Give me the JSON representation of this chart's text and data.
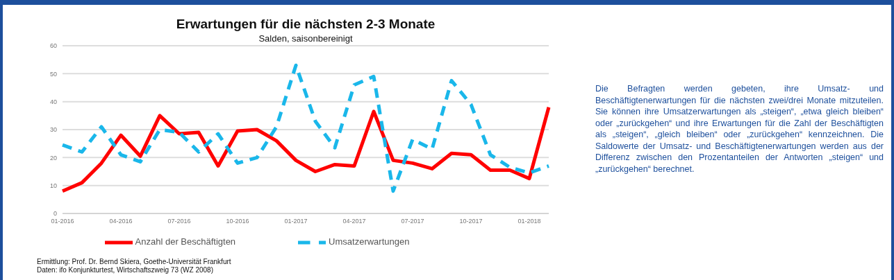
{
  "chart_data": {
    "type": "line",
    "title": "Erwartungen für die nächsten 2-3 Monate",
    "subtitle": "Salden, saisonbereinigt",
    "categories": [
      "01-2016",
      null,
      null,
      "04-2016",
      null,
      null,
      "07-2016",
      null,
      null,
      "10-2016",
      null,
      null,
      "01-2017",
      null,
      null,
      "04-2017",
      null,
      null,
      "07-2017",
      null,
      null,
      "10-2017",
      null,
      null,
      "01-2018",
      null
    ],
    "series": [
      {
        "name": "Anzahl der Beschäftigten",
        "color": "#ff0000",
        "line_style": "solid",
        "values": [
          8,
          11,
          18,
          28,
          20.5,
          35,
          28.5,
          29,
          17,
          29.5,
          30,
          26,
          19,
          15,
          17.5,
          17,
          36.5,
          19,
          18,
          16,
          21.5,
          21,
          15.5,
          15.5,
          12.5,
          38
        ]
      },
      {
        "name": "Umsatzerwartungen",
        "color": "#1ab7ea",
        "line_style": "dashed",
        "values": [
          24.5,
          22,
          31,
          21,
          18.5,
          30,
          29,
          22,
          28.5,
          18,
          20,
          31,
          53,
          33,
          23.5,
          46,
          49,
          8,
          26.5,
          23,
          47.5,
          39,
          21,
          16.5,
          14.5,
          17
        ]
      }
    ],
    "ylim": [
      0,
      60
    ],
    "yticks": [
      0,
      10,
      20,
      30,
      40,
      50,
      60
    ],
    "grid": "y",
    "legend": "bottom",
    "marker": "none",
    "annotations": [
      "Ermittlung: Prof. Dr. Bernd Skiera, Goethe-Universität Frankfurt",
      "Daten: ifo Konjunkturtest, Wirtschaftszweig 73 (WZ 2008)",
      "Die Befragten werden gebeten, ihre Umsatz- und Beschäftigtenerwartungen für die nächsten zwei/drei Monate mitzuteilen. Sie können ihre Umsatzerwartungen als „steigen“, „etwa gleich bleiben“ oder „zurückgehen“ und ihre Erwartungen für die Zahl der Beschäftigten als „steigen“, „gleich bleiben“ oder „zurückgehen“ kennzeichnen. Die Saldowerte der Umsatz- und Beschäftigtenerwartungen werden aus der Differenz zwischen den Prozentanteilen der Antworten „steigen“ und „zurückgehen“ berechnet."
    ]
  }
}
